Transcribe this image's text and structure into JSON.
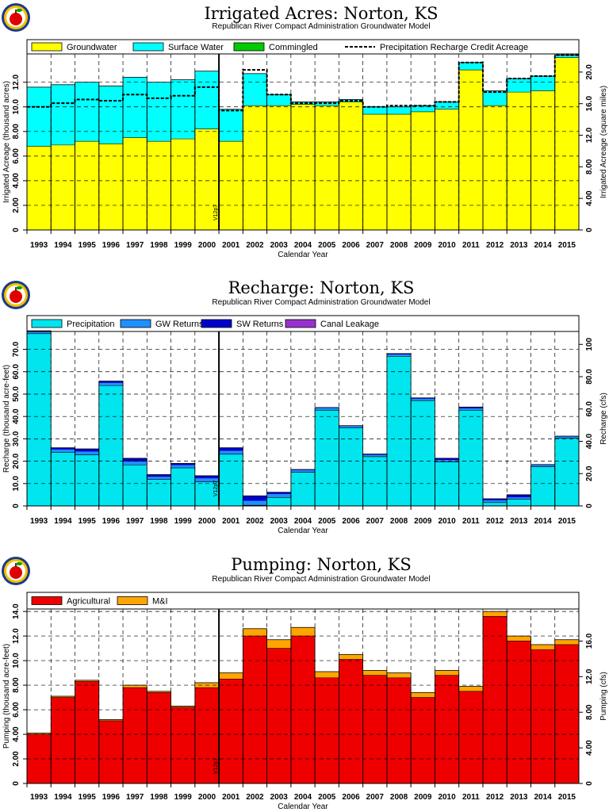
{
  "colors": {
    "groundwater": "#ffff00",
    "surface_water": "#00ffff",
    "commingled": "#00cc00",
    "precipitation": "#00e5ee",
    "gw_returns": "#1e90ff",
    "sw_returns": "#0000cd",
    "canal_leakage": "#9932cc",
    "agricultural": "#ee0000",
    "mi": "#ffa500"
  },
  "marker_label": "V12p7",
  "chart_data": [
    {
      "type": "bar",
      "stacked": true,
      "title": "Irrigated  Acres:  Norton,  KS",
      "subtitle": "Republican  River  Compact  Administration  Groundwater  Model",
      "xlabel": "Calendar  Year",
      "ylabel": "Irrigated  Acreage  (thousand  acres)",
      "y2label": "Irrigated  Acreage  (square  miles)",
      "ylim": [
        0,
        14.3
      ],
      "y2lim": [
        0,
        22.3
      ],
      "yticks": [
        "0",
        "2.00",
        "4.00",
        "6.00",
        "8.00",
        "10.0",
        "12.0"
      ],
      "y2ticks": [
        "0",
        "4.00",
        "8.00",
        "12.0",
        "16.0",
        "20.0"
      ],
      "grid": true,
      "legend_position": "top",
      "categories": [
        "1993",
        "1994",
        "1995",
        "1996",
        "1997",
        "1998",
        "1999",
        "2000",
        "2001",
        "2002",
        "2003",
        "2004",
        "2005",
        "2006",
        "2007",
        "2008",
        "2009",
        "2010",
        "2011",
        "2012",
        "2013",
        "2014",
        "2015"
      ],
      "series": [
        {
          "name": "Groundwater",
          "color_key": "groundwater",
          "values": [
            6.8,
            6.9,
            7.2,
            7.0,
            7.5,
            7.2,
            7.4,
            8.2,
            7.2,
            10.1,
            10.1,
            10.2,
            10.1,
            10.4,
            9.4,
            9.4,
            9.6,
            9.8,
            13.0,
            10.1,
            11.2,
            11.3,
            14.0
          ]
        },
        {
          "name": "Surface Water",
          "color_key": "surface_water",
          "values": [
            4.8,
            4.9,
            4.8,
            4.7,
            4.9,
            4.8,
            4.8,
            4.7,
            2.6,
            2.6,
            0.9,
            0.2,
            0.3,
            0.2,
            0.6,
            0.6,
            0.5,
            0.6,
            0.6,
            1.2,
            1.1,
            1.2,
            0.2
          ]
        },
        {
          "name": "Commingled",
          "color_key": "commingled",
          "values": [
            0,
            0,
            0,
            0,
            0,
            0,
            0,
            0,
            0,
            0,
            0,
            0,
            0,
            0,
            0,
            0,
            0,
            0,
            0,
            0,
            0,
            0,
            0
          ]
        }
      ],
      "line_series": {
        "name": "Precipitation  Recharge  Credit  Acreage",
        "values": [
          10.0,
          10.3,
          10.6,
          10.5,
          11.0,
          10.7,
          10.9,
          11.6,
          9.7,
          13.0,
          11.0,
          10.3,
          10.3,
          10.5,
          10.0,
          10.1,
          10.1,
          10.4,
          13.6,
          11.2,
          12.3,
          12.5,
          14.2
        ]
      },
      "marker_index": 8
    },
    {
      "type": "bar",
      "stacked": true,
      "title": "Recharge:  Norton,  KS",
      "subtitle": "Republican  River  Compact  Administration  Groundwater  Model",
      "xlabel": "Calendar  Year",
      "ylabel": "Recharge  (thousand  acre-feet)",
      "y2label": "Recharge  (cfs)",
      "ylim": [
        0,
        78
      ],
      "y2lim": [
        0,
        108
      ],
      "yticks": [
        "0",
        "10.0",
        "20.0",
        "30.0",
        "40.0",
        "50.0",
        "60.0",
        "70.0"
      ],
      "y2ticks": [
        "0",
        "20.0",
        "40.0",
        "60.0",
        "80.0",
        "100"
      ],
      "grid": true,
      "legend_position": "top",
      "categories": [
        "1993",
        "1994",
        "1995",
        "1996",
        "1997",
        "1998",
        "1999",
        "2000",
        "2001",
        "2002",
        "2003",
        "2004",
        "2005",
        "2006",
        "2007",
        "2008",
        "2009",
        "2010",
        "2011",
        "2012",
        "2013",
        "2014",
        "2015"
      ],
      "series": [
        {
          "name": "Precipitation",
          "color_key": "precipitation",
          "values": [
            77.0,
            24.0,
            22.8,
            53.8,
            18.3,
            11.8,
            17.0,
            10.8,
            23.1,
            0.3,
            3.8,
            15.0,
            42.8,
            34.9,
            22.0,
            66.9,
            47.1,
            19.7,
            42.8,
            1.5,
            3.0,
            17.5,
            30.2
          ]
        },
        {
          "name": "GW  Returns",
          "color_key": "gw_returns",
          "values": [
            1.0,
            1.2,
            1.5,
            1.2,
            1.5,
            1.2,
            1.2,
            1.5,
            1.5,
            2.0,
            1.5,
            1.0,
            1.0,
            0.8,
            0.8,
            0.8,
            0.8,
            0.8,
            0.8,
            1.0,
            0.8,
            0.8,
            0.8
          ]
        },
        {
          "name": "SW  Returns",
          "color_key": "sw_returns",
          "values": [
            0.3,
            0.8,
            1.2,
            0.8,
            1.5,
            1.0,
            0.8,
            1.2,
            1.4,
            2.2,
            0.8,
            0.3,
            0.2,
            0.2,
            0.4,
            0.4,
            0.4,
            0.8,
            0.6,
            0.7,
            1.2,
            0.2,
            0.2
          ]
        },
        {
          "name": "Canal  Leakage",
          "color_key": "canal_leakage",
          "values": [
            0,
            0,
            0,
            0,
            0,
            0,
            0,
            0,
            0,
            0,
            0,
            0,
            0,
            0,
            0,
            0,
            0,
            0,
            0,
            0,
            0,
            0,
            0
          ]
        }
      ],
      "marker_index": 8
    },
    {
      "type": "bar",
      "stacked": true,
      "title": "Pumping:  Norton,  KS",
      "subtitle": "Republican  River  Compact  Administration  Groundwater  Model",
      "xlabel": "Calendar  Year",
      "ylabel": "Pumping  (thousand  acre-feet)",
      "y2label": "Pumping  (cfs)",
      "ylim": [
        0,
        14.2
      ],
      "y2lim": [
        0,
        19.6
      ],
      "yticks": [
        "0",
        "2.00",
        "4.00",
        "6.00",
        "8.00",
        "10.0",
        "12.0",
        "14.0"
      ],
      "y2ticks": [
        "0",
        "4.00",
        "8.00",
        "12.0",
        "16.0"
      ],
      "grid": true,
      "legend_position": "top",
      "categories": [
        "1993",
        "1994",
        "1995",
        "1996",
        "1997",
        "1998",
        "1999",
        "2000",
        "2001",
        "2002",
        "2003",
        "2004",
        "2005",
        "2006",
        "2007",
        "2008",
        "2009",
        "2010",
        "2011",
        "2012",
        "2013",
        "2014",
        "2015"
      ],
      "series": [
        {
          "name": "Agricultural",
          "color_key": "agricultural",
          "values": [
            4.0,
            7.0,
            8.3,
            5.1,
            7.8,
            7.4,
            6.2,
            7.8,
            8.5,
            12.0,
            11.0,
            12.0,
            8.6,
            10.1,
            8.8,
            8.6,
            7.0,
            8.8,
            7.5,
            13.6,
            11.6,
            10.9,
            11.3
          ]
        },
        {
          "name": "M&I",
          "color_key": "mi",
          "values": [
            0.1,
            0.1,
            0.1,
            0.1,
            0.2,
            0.1,
            0.1,
            0.4,
            0.5,
            0.6,
            0.7,
            0.7,
            0.5,
            0.4,
            0.4,
            0.4,
            0.4,
            0.4,
            0.4,
            0.4,
            0.4,
            0.4,
            0.4
          ]
        }
      ],
      "marker_index": 8
    }
  ]
}
